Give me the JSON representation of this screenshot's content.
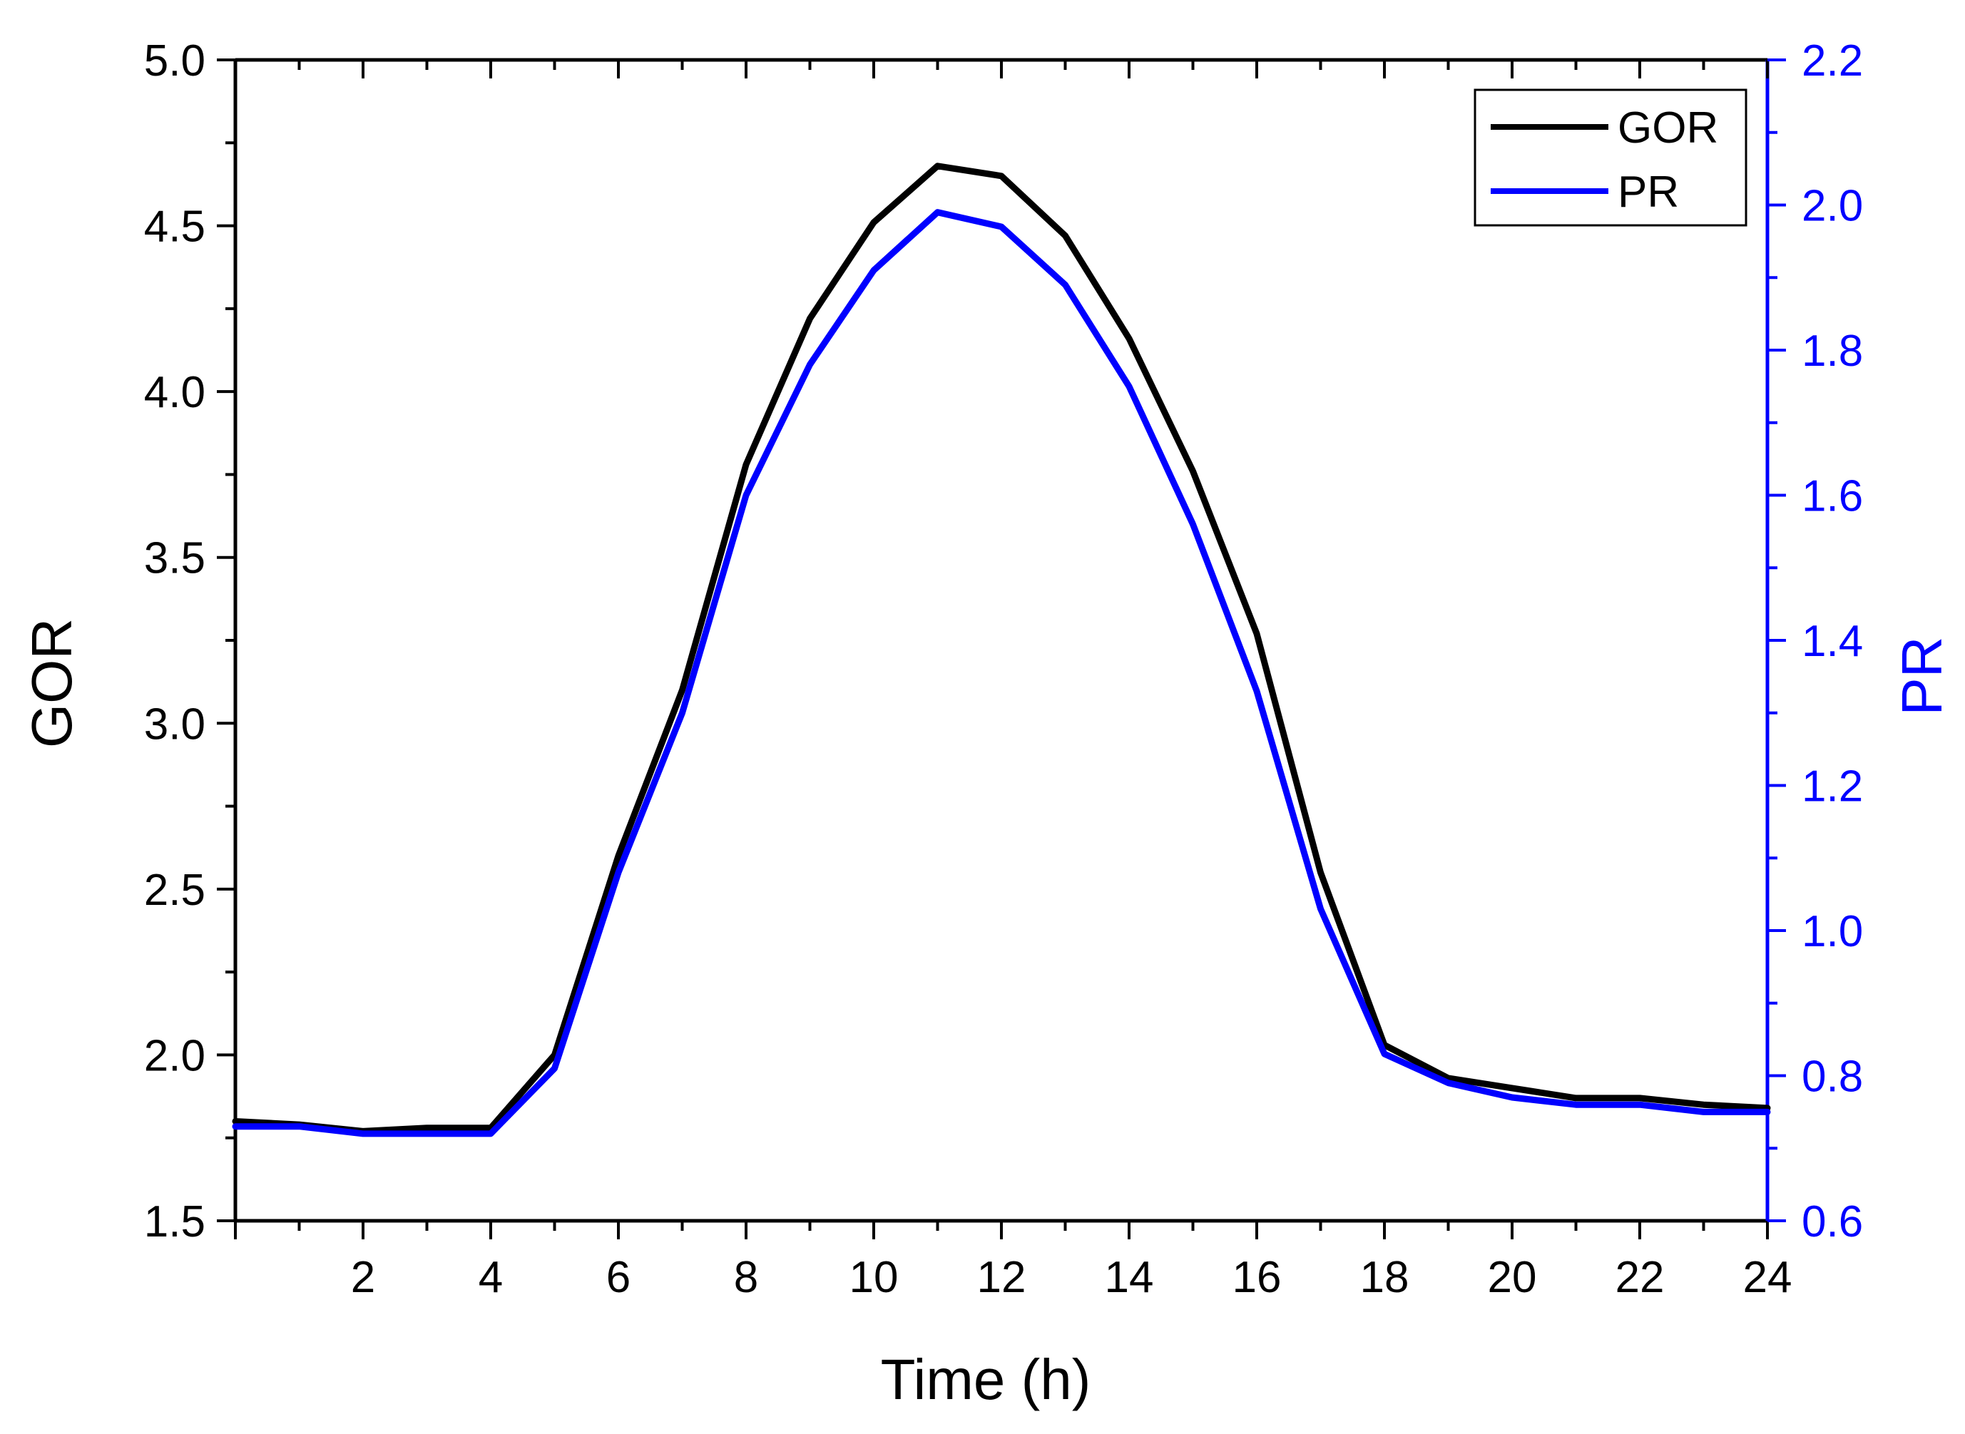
{
  "chart_data": {
    "type": "line",
    "xlabel": "Time (h)",
    "ylabel": "GOR",
    "y2label": "PR",
    "xlim": [
      0,
      24
    ],
    "ylim": [
      1.5,
      5.0
    ],
    "y2lim": [
      0.6,
      2.2
    ],
    "xticks": [
      "2",
      "4",
      "6",
      "8",
      "10",
      "12",
      "14",
      "16",
      "18",
      "20",
      "22",
      "24"
    ],
    "yticks": [
      "1.5",
      "2.0",
      "2.5",
      "3.0",
      "3.5",
      "4.0",
      "4.5",
      "5.0"
    ],
    "y2ticks": [
      "0.6",
      "0.8",
      "1.0",
      "1.2",
      "1.4",
      "1.6",
      "1.8",
      "2.0",
      "2.2"
    ],
    "grid": false,
    "legend_position": "top-right",
    "series": [
      {
        "name": "GOR",
        "axis": "left",
        "color": "#000000",
        "x": [
          0,
          1,
          2,
          3,
          4,
          5,
          6,
          7,
          8,
          9,
          10,
          11,
          12,
          13,
          14,
          15,
          16,
          17,
          18,
          19,
          20,
          21,
          22,
          23,
          24
        ],
        "values": [
          1.8,
          1.79,
          1.77,
          1.78,
          1.78,
          2.0,
          2.6,
          3.1,
          3.78,
          4.22,
          4.51,
          4.68,
          4.65,
          4.47,
          4.16,
          3.76,
          3.27,
          2.55,
          2.03,
          1.93,
          1.9,
          1.87,
          1.87,
          1.85,
          1.84
        ]
      },
      {
        "name": "PR",
        "axis": "right",
        "color": "#0000ff",
        "x": [
          0,
          1,
          2,
          3,
          4,
          5,
          6,
          7,
          8,
          9,
          10,
          11,
          12,
          13,
          14,
          15,
          16,
          17,
          18,
          19,
          20,
          21,
          22,
          23,
          24
        ],
        "values": [
          0.73,
          0.73,
          0.72,
          0.72,
          0.72,
          0.81,
          1.08,
          1.3,
          1.6,
          1.78,
          1.91,
          1.99,
          1.97,
          1.89,
          1.75,
          1.56,
          1.33,
          1.03,
          0.83,
          0.79,
          0.77,
          0.76,
          0.76,
          0.75,
          0.75
        ]
      }
    ]
  }
}
